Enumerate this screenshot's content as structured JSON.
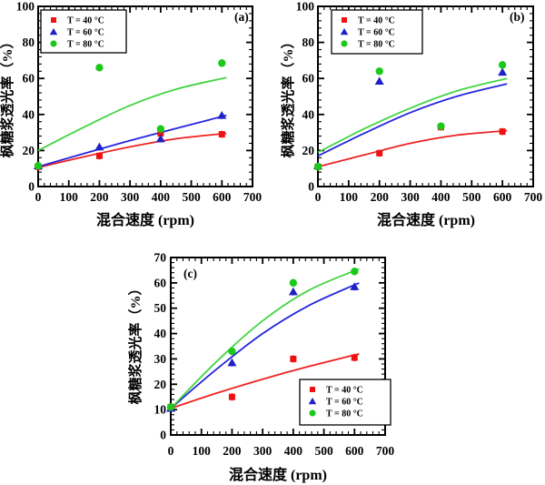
{
  "figure": {
    "background": "#ffffff",
    "frame_color": "#000000",
    "accent_colors": {
      "t40": "#ee1111",
      "t60": "#2020c8",
      "t80": "#1cc81c"
    }
  },
  "chart_data": [
    {
      "type": "scatter",
      "panel_label": "(a)",
      "xlabel": "混合速度 (rpm)",
      "ylabel": "枫糖浆透光率（%）",
      "xlim": [
        0,
        700
      ],
      "ylim": [
        0,
        100
      ],
      "xticks": [
        0,
        100,
        200,
        300,
        400,
        500,
        600,
        700
      ],
      "yticks": [
        0,
        20,
        40,
        60,
        80,
        100
      ],
      "x_minor_step": 20,
      "y_minor_step": 4,
      "grid": false,
      "legend_position": "top-left",
      "error_bar": 2,
      "series": [
        {
          "name": "T = 40 °C",
          "marker": "square",
          "color": "#ee1111",
          "curve_color": "#ee2222",
          "points": [
            [
              0,
              11
            ],
            [
              200,
              17
            ],
            [
              400,
              29.5
            ],
            [
              600,
              29
            ]
          ],
          "fit": [
            [
              0,
              10.5
            ],
            [
              150,
              16.5
            ],
            [
              300,
              22
            ],
            [
              450,
              26.5
            ],
            [
              615,
              29.5
            ]
          ]
        },
        {
          "name": "T = 60 °C",
          "marker": "triangle",
          "color": "#2020c8",
          "curve_color": "#2525dd",
          "points": [
            [
              0,
              11.5
            ],
            [
              200,
              22
            ],
            [
              400,
              26.5
            ],
            [
              600,
              39.5
            ]
          ],
          "fit": [
            [
              0,
              11
            ],
            [
              300,
              25.5
            ],
            [
              615,
              39.5
            ]
          ]
        },
        {
          "name": "T = 80 °C",
          "marker": "circle",
          "color": "#1cc81c",
          "curve_color": "#44d444",
          "points": [
            [
              0,
              11.5
            ],
            [
              200,
              66
            ],
            [
              400,
              32
            ],
            [
              600,
              68.5
            ]
          ],
          "fit": [
            [
              0,
              20
            ],
            [
              150,
              33
            ],
            [
              300,
              45
            ],
            [
              450,
              54
            ],
            [
              615,
              60.5
            ]
          ]
        }
      ]
    },
    {
      "type": "scatter",
      "panel_label": "(b)",
      "xlabel": "混合速度 (rpm)",
      "ylabel": "枫糖浆透光率（%）",
      "xlim": [
        0,
        700
      ],
      "ylim": [
        0,
        100
      ],
      "xticks": [
        0,
        100,
        200,
        300,
        400,
        500,
        600,
        700
      ],
      "yticks": [
        0,
        20,
        40,
        60,
        80,
        100
      ],
      "x_minor_step": 20,
      "y_minor_step": 4,
      "grid": false,
      "legend_position": "top-left",
      "error_bar": 2,
      "series": [
        {
          "name": "T = 40 °C",
          "marker": "square",
          "color": "#ee1111",
          "curve_color": "#ee2222",
          "points": [
            [
              0,
              11
            ],
            [
              200,
              18.5
            ],
            [
              400,
              33
            ],
            [
              600,
              30.5
            ]
          ],
          "fit": [
            [
              0,
              11
            ],
            [
              150,
              17.5
            ],
            [
              300,
              24
            ],
            [
              450,
              28.5
            ],
            [
              615,
              31
            ]
          ]
        },
        {
          "name": "T = 60 °C",
          "marker": "triangle",
          "color": "#2020c8",
          "curve_color": "#2525dd",
          "points": [
            [
              0,
              11.5
            ],
            [
              200,
              58.5
            ],
            [
              600,
              63.5
            ]
          ],
          "fit": [
            [
              0,
              17
            ],
            [
              150,
              29.5
            ],
            [
              300,
              41
            ],
            [
              450,
              50
            ],
            [
              615,
              57
            ]
          ]
        },
        {
          "name": "T = 80 °C",
          "marker": "circle",
          "color": "#1cc81c",
          "curve_color": "#44d444",
          "points": [
            [
              0,
              11
            ],
            [
              200,
              64
            ],
            [
              400,
              33.5
            ],
            [
              600,
              67.5
            ]
          ],
          "fit": [
            [
              0,
              19
            ],
            [
              150,
              32
            ],
            [
              300,
              43.5
            ],
            [
              450,
              53
            ],
            [
              615,
              60
            ]
          ]
        }
      ]
    },
    {
      "type": "scatter",
      "panel_label": "(c)",
      "xlabel": "混合速度 (rpm)",
      "ylabel": "枫糖浆透光率（%）",
      "xlim": [
        0,
        700
      ],
      "ylim": [
        0,
        70
      ],
      "xticks": [
        0,
        100,
        200,
        300,
        400,
        500,
        600,
        700
      ],
      "yticks": [
        0,
        10,
        20,
        30,
        40,
        50,
        60,
        70
      ],
      "x_minor_step": 20,
      "y_minor_step": 2,
      "grid": false,
      "legend_position": "bottom-right",
      "error_bar": 1.5,
      "series": [
        {
          "name": "T = 40 °C",
          "marker": "square",
          "color": "#ee1111",
          "curve_color": "#ee2222",
          "points": [
            [
              0,
              11
            ],
            [
              200,
              15
            ],
            [
              400,
              30
            ],
            [
              600,
              30.5
            ]
          ],
          "fit": [
            [
              0,
              10.5
            ],
            [
              150,
              16.5
            ],
            [
              300,
              22
            ],
            [
              450,
              27
            ],
            [
              615,
              32
            ]
          ]
        },
        {
          "name": "T = 60 °C",
          "marker": "triangle",
          "color": "#2020c8",
          "curve_color": "#2525dd",
          "points": [
            [
              0,
              10.5
            ],
            [
              200,
              28.5
            ],
            [
              400,
              56.5
            ],
            [
              600,
              58.5
            ]
          ],
          "fit": [
            [
              0,
              10.5
            ],
            [
              150,
              26
            ],
            [
              300,
              40
            ],
            [
              450,
              51
            ],
            [
              615,
              60
            ]
          ]
        },
        {
          "name": "T = 80 °C",
          "marker": "circle",
          "color": "#1cc81c",
          "curve_color": "#44d444",
          "points": [
            [
              0,
              11
            ],
            [
              200,
              33
            ],
            [
              400,
              60
            ],
            [
              600,
              64.5
            ]
          ],
          "fit": [
            [
              0,
              10.5
            ],
            [
              150,
              29
            ],
            [
              300,
              45
            ],
            [
              450,
              57
            ],
            [
              615,
              65.5
            ]
          ]
        }
      ]
    }
  ]
}
